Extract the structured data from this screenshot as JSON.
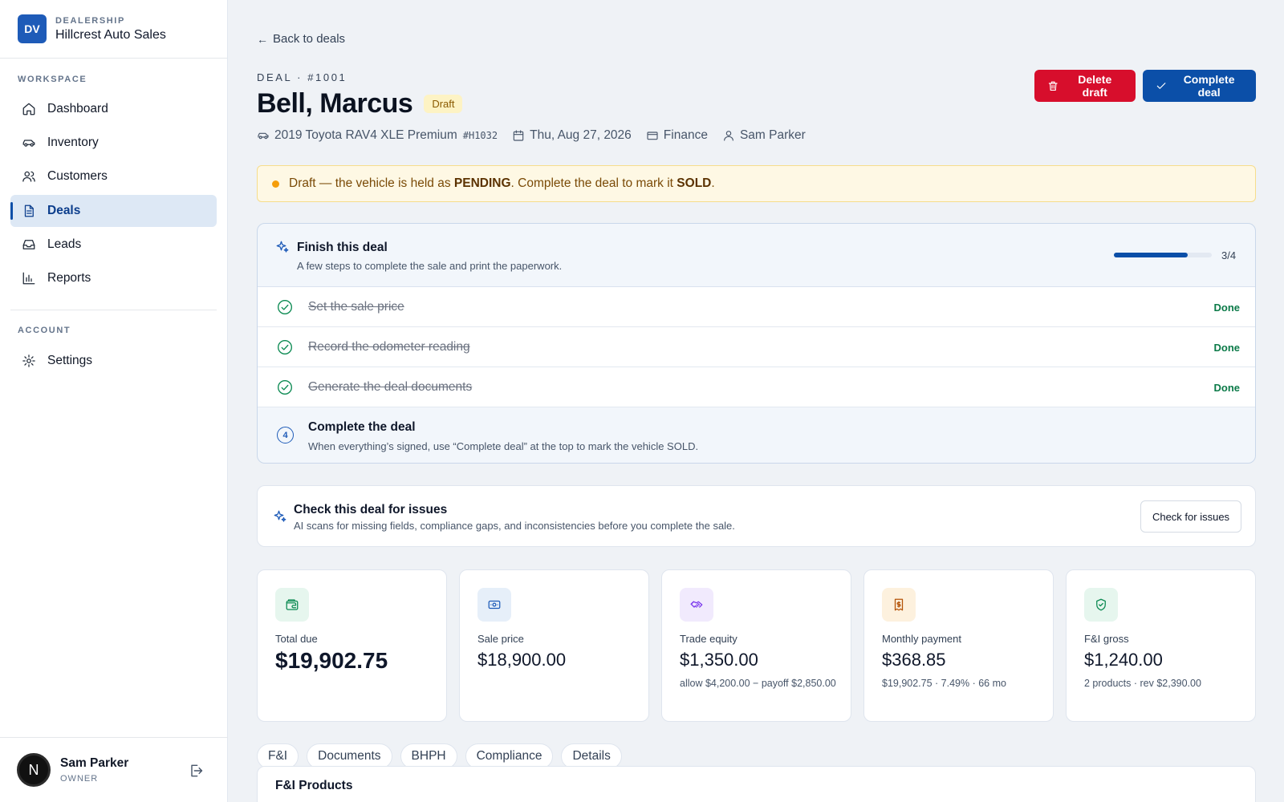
{
  "brand": {
    "logo": "DV",
    "kicker": "DEALERSHIP",
    "name": "Hillcrest Auto Sales"
  },
  "sidebar": {
    "workspace_label": "WORKSPACE",
    "items": [
      {
        "label": "Dashboard",
        "icon": "home-icon"
      },
      {
        "label": "Inventory",
        "icon": "car-icon"
      },
      {
        "label": "Customers",
        "icon": "users-icon"
      },
      {
        "label": "Deals",
        "icon": "document-icon",
        "active": true
      },
      {
        "label": "Leads",
        "icon": "inbox-icon"
      },
      {
        "label": "Reports",
        "icon": "bar-chart-icon"
      }
    ],
    "account_label": "ACCOUNT",
    "settings": {
      "label": "Settings",
      "icon": "gear-icon"
    }
  },
  "user": {
    "initial": "N",
    "name": "Sam Parker",
    "role": "OWNER"
  },
  "header": {
    "back": "Back to deals",
    "kicker": "DEAL · #1001",
    "title": "Bell, Marcus",
    "status": "Draft",
    "vehicle": "2019 Toyota RAV4 XLE Premium",
    "vehicle_code": "#H1032",
    "date": "Thu, Aug 27, 2026",
    "payment_type": "Finance",
    "salesperson": "Sam Parker",
    "delete_label": "Delete draft",
    "complete_label": "Complete deal"
  },
  "alert": {
    "before": "Draft — the vehicle is held as ",
    "held_status": "PENDING",
    "middle": ". Complete the deal to mark it ",
    "final_status": "SOLD",
    "after": "."
  },
  "finish": {
    "title": "Finish this deal",
    "subtitle": "A few steps to complete the sale and print the paperwork.",
    "progress_fraction": 0.75,
    "progress_text": "3/4",
    "steps": [
      {
        "label": "Set the sale price",
        "status": "Done"
      },
      {
        "label": "Record the odometer reading",
        "status": "Done"
      },
      {
        "label": "Generate the deal documents",
        "status": "Done"
      }
    ],
    "final_step": {
      "number": "4",
      "label": "Complete the deal",
      "description": "When everything’s signed, use “Complete deal” at the top to mark the vehicle SOLD."
    }
  },
  "check": {
    "title": "Check this deal for issues",
    "subtitle": "AI scans for missing fields, compliance gaps, and inconsistencies before you complete the sale.",
    "button": "Check for issues"
  },
  "stats": [
    {
      "label": "Total due",
      "value": "$19,902.75",
      "note": "",
      "icon": "wallet-icon",
      "color": "#0b8a52",
      "bg": "#e6f6ee"
    },
    {
      "label": "Sale price",
      "value": "$18,900.00",
      "note": "",
      "icon": "banknote-icon",
      "color": "#1e5bb8",
      "bg": "#e6eff9"
    },
    {
      "label": "Trade equity",
      "value": "$1,350.00",
      "note": "allow $4,200.00 − payoff $2,850.00",
      "icon": "handshake-icon",
      "color": "#7c3aed",
      "bg": "#f1eafd"
    },
    {
      "label": "Monthly payment",
      "value": "$368.85",
      "note": "$19,902.75 · 7.49% · 66 mo",
      "icon": "receipt-icon",
      "color": "#b45309",
      "bg": "#fdf1de"
    },
    {
      "label": "F&I gross",
      "value": "$1,240.00",
      "note": "2 products · rev $2,390.00",
      "icon": "shield-check-icon",
      "color": "#0b8a52",
      "bg": "#e6f6ee"
    }
  ],
  "tabs": [
    "F&I",
    "Documents",
    "BHPH",
    "Compliance",
    "Details"
  ],
  "fi_section": {
    "title": "F&I Products"
  }
}
